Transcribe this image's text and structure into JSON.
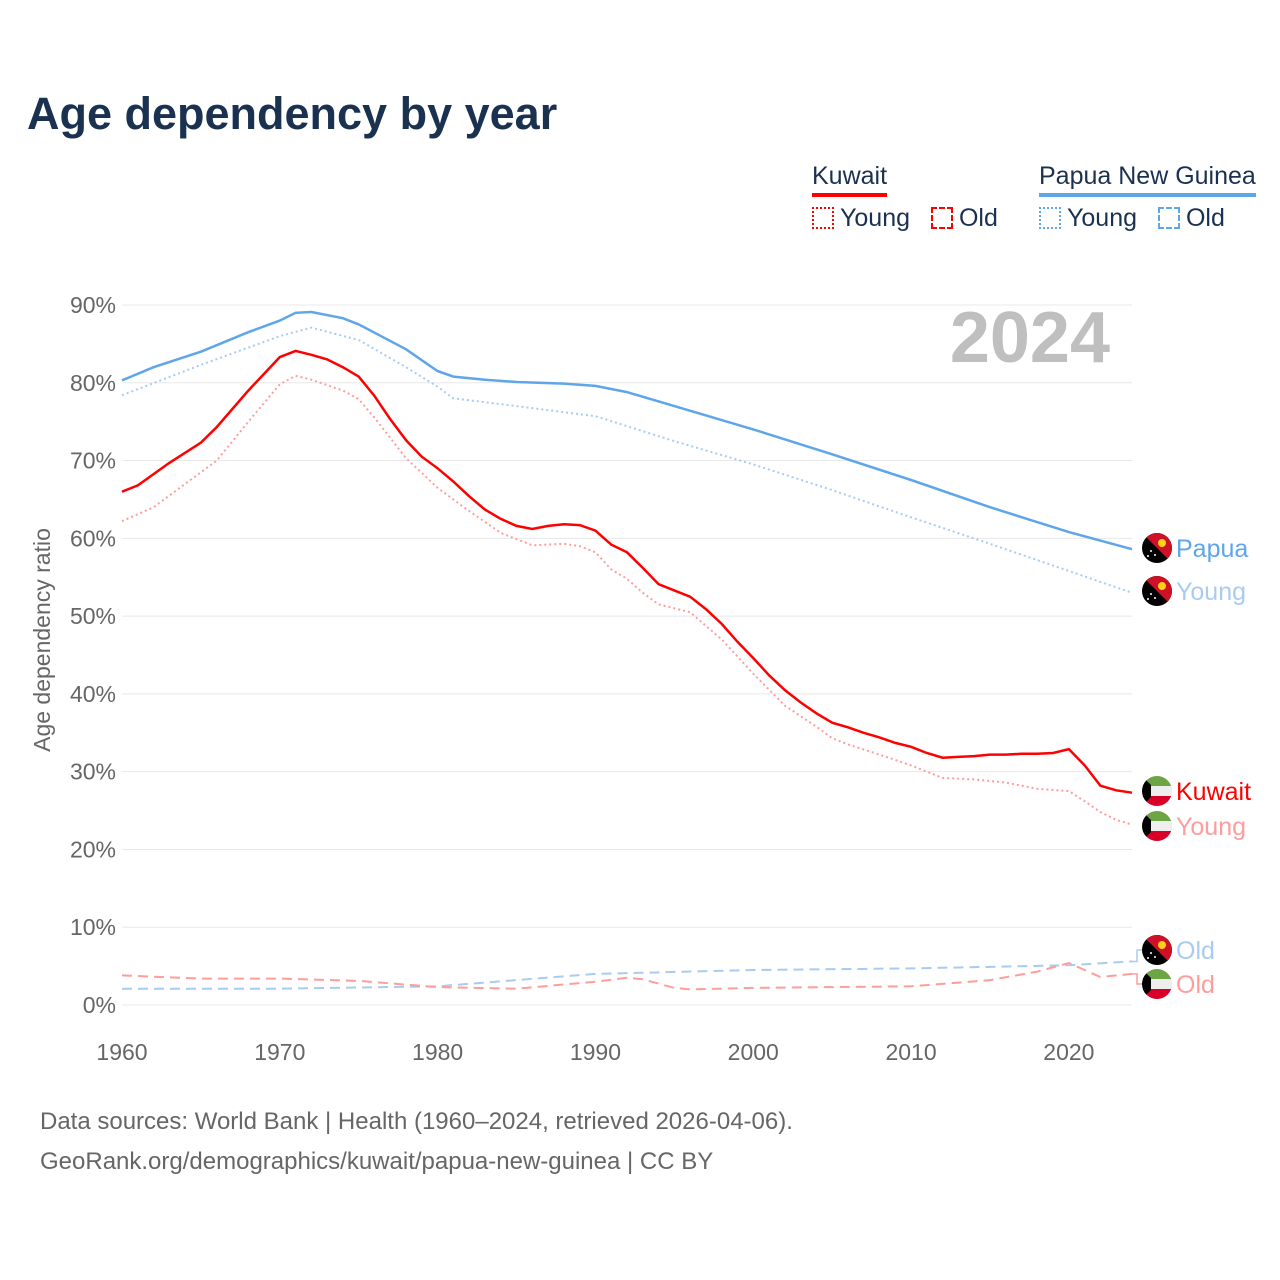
{
  "colors": {
    "kuwait": "#ff0000",
    "kuwait_light": "#ff9c9c",
    "png": "#5fa5ea",
    "png_light": "#a8cbf2",
    "title": "#1b3150"
  },
  "legend": {
    "kuwait": {
      "name": "Kuwait",
      "young": "Young",
      "old": "Old"
    },
    "png": {
      "name": "Papua New Guinea",
      "young": "Young",
      "old": "Old"
    }
  },
  "sources": {
    "line1": "Data sources: World Bank | Health (1960–2024, retrieved 2026-04-06).",
    "line2": "GeoRank.org/demographics/kuwait/papua-new-guinea | CC BY"
  },
  "chart_data": {
    "type": "line",
    "title": "Age dependency by year",
    "year_label": "2024",
    "xlabel": "",
    "ylabel": "Age dependency ratio",
    "xlim": [
      1960,
      2024
    ],
    "ylim": [
      0,
      90
    ],
    "xticks": [
      "1960",
      "1970",
      "1980",
      "1990",
      "2000",
      "2010",
      "2020"
    ],
    "yticks": [
      "0%",
      "10%",
      "20%",
      "30%",
      "40%",
      "50%",
      "60%",
      "70%",
      "80%",
      "90%"
    ],
    "grid": true,
    "series": [
      {
        "name": "Papua New Guinea",
        "end_label": "Papua",
        "kind": "total",
        "color": "#5fa5ea",
        "style": "solid",
        "points": [
          [
            1960,
            80.3
          ],
          [
            1962,
            82
          ],
          [
            1965,
            84
          ],
          [
            1968,
            86.5
          ],
          [
            1970,
            88
          ],
          [
            1971,
            89
          ],
          [
            1972,
            89.1
          ],
          [
            1974,
            88.3
          ],
          [
            1975,
            87.5
          ],
          [
            1978,
            84.3
          ],
          [
            1980,
            81.5
          ],
          [
            1981,
            80.8
          ],
          [
            1983,
            80.4
          ],
          [
            1985,
            80.1
          ],
          [
            1988,
            79.9
          ],
          [
            1990,
            79.6
          ],
          [
            1992,
            78.8
          ],
          [
            1995,
            77
          ],
          [
            2000,
            74
          ],
          [
            2005,
            70.8
          ],
          [
            2010,
            67.5
          ],
          [
            2015,
            64
          ],
          [
            2020,
            60.8
          ],
          [
            2024,
            58.6
          ]
        ]
      },
      {
        "name": "Papua New Guinea Young",
        "end_label": "Young",
        "kind": "young",
        "color": "#a8cbf2",
        "style": "dotted",
        "points": [
          [
            1960,
            78.4
          ],
          [
            1965,
            82.3
          ],
          [
            1970,
            86
          ],
          [
            1972,
            87.1
          ],
          [
            1975,
            85.5
          ],
          [
            1978,
            82
          ],
          [
            1980,
            79.5
          ],
          [
            1981,
            78
          ],
          [
            1985,
            77
          ],
          [
            1990,
            75.7
          ],
          [
            1995,
            72.5
          ],
          [
            2000,
            69.5
          ],
          [
            2005,
            66.2
          ],
          [
            2010,
            62.7
          ],
          [
            2015,
            59.3
          ],
          [
            2020,
            55.8
          ],
          [
            2024,
            53
          ]
        ]
      },
      {
        "name": "Kuwait",
        "end_label": "Kuwait",
        "kind": "total",
        "color": "#ff0000",
        "style": "solid",
        "points": [
          [
            1960,
            66
          ],
          [
            1961,
            66.8
          ],
          [
            1963,
            69.7
          ],
          [
            1965,
            72.3
          ],
          [
            1966,
            74.3
          ],
          [
            1968,
            79
          ],
          [
            1970,
            83.3
          ],
          [
            1971,
            84.1
          ],
          [
            1972,
            83.6
          ],
          [
            1973,
            83
          ],
          [
            1974,
            82
          ],
          [
            1975,
            80.8
          ],
          [
            1976,
            78.3
          ],
          [
            1977,
            75.3
          ],
          [
            1978,
            72.6
          ],
          [
            1979,
            70.5
          ],
          [
            1980,
            69
          ],
          [
            1981,
            67.3
          ],
          [
            1982,
            65.4
          ],
          [
            1983,
            63.7
          ],
          [
            1984,
            62.5
          ],
          [
            1985,
            61.6
          ],
          [
            1986,
            61.2
          ],
          [
            1987,
            61.6
          ],
          [
            1988,
            61.8
          ],
          [
            1989,
            61.7
          ],
          [
            1990,
            61
          ],
          [
            1991,
            59.2
          ],
          [
            1992,
            58.2
          ],
          [
            1993,
            56.2
          ],
          [
            1994,
            54.1
          ],
          [
            1995,
            53.3
          ],
          [
            1996,
            52.5
          ],
          [
            1997,
            50.9
          ],
          [
            1998,
            49
          ],
          [
            1999,
            46.7
          ],
          [
            2000,
            44.6
          ],
          [
            2001,
            42.4
          ],
          [
            2002,
            40.5
          ],
          [
            2003,
            38.9
          ],
          [
            2004,
            37.5
          ],
          [
            2005,
            36.3
          ],
          [
            2006,
            35.7
          ],
          [
            2007,
            35
          ],
          [
            2008,
            34.4
          ],
          [
            2009,
            33.7
          ],
          [
            2010,
            33.2
          ],
          [
            2011,
            32.4
          ],
          [
            2012,
            31.8
          ],
          [
            2013,
            31.9
          ],
          [
            2014,
            32
          ],
          [
            2015,
            32.2
          ],
          [
            2016,
            32.2
          ],
          [
            2017,
            32.3
          ],
          [
            2018,
            32.3
          ],
          [
            2019,
            32.4
          ],
          [
            2020,
            32.9
          ],
          [
            2021,
            30.8
          ],
          [
            2022,
            28.2
          ],
          [
            2023,
            27.6
          ],
          [
            2024,
            27.3
          ]
        ]
      },
      {
        "name": "Kuwait Young",
        "end_label": "Young",
        "kind": "young",
        "color": "#ff9c9c",
        "style": "dotted",
        "points": [
          [
            1960,
            62.2
          ],
          [
            1962,
            64
          ],
          [
            1964,
            67
          ],
          [
            1966,
            70
          ],
          [
            1968,
            75
          ],
          [
            1970,
            79.8
          ],
          [
            1971,
            80.9
          ],
          [
            1972,
            80.4
          ],
          [
            1974,
            79
          ],
          [
            1975,
            77.9
          ],
          [
            1976,
            75.5
          ],
          [
            1978,
            70.3
          ],
          [
            1980,
            66.5
          ],
          [
            1982,
            63.5
          ],
          [
            1984,
            60.7
          ],
          [
            1986,
            59.1
          ],
          [
            1988,
            59.3
          ],
          [
            1989,
            59
          ],
          [
            1990,
            58.2
          ],
          [
            1991,
            56
          ],
          [
            1992,
            54.8
          ],
          [
            1993,
            53
          ],
          [
            1994,
            51.5
          ],
          [
            1996,
            50.5
          ],
          [
            1998,
            47
          ],
          [
            2000,
            42.6
          ],
          [
            2002,
            38.5
          ],
          [
            2004,
            35.8
          ],
          [
            2005,
            34.3
          ],
          [
            2006,
            33.5
          ],
          [
            2008,
            32.2
          ],
          [
            2010,
            30.8
          ],
          [
            2012,
            29.2
          ],
          [
            2014,
            29
          ],
          [
            2016,
            28.6
          ],
          [
            2018,
            27.8
          ],
          [
            2020,
            27.5
          ],
          [
            2021,
            26.2
          ],
          [
            2022,
            24.8
          ],
          [
            2023,
            23.8
          ],
          [
            2024,
            23.2
          ]
        ]
      },
      {
        "name": "Papua New Guinea Old",
        "end_label": "Old",
        "kind": "old",
        "color": "#a8cbf2",
        "style": "dashed",
        "points": [
          [
            1960,
            2.1
          ],
          [
            1970,
            2.1
          ],
          [
            1980,
            2.4
          ],
          [
            1990,
            4
          ],
          [
            2000,
            4.5
          ],
          [
            2010,
            4.7
          ],
          [
            2020,
            5.1
          ],
          [
            2024,
            5.6
          ]
        ]
      },
      {
        "name": "Kuwait Old",
        "end_label": "Old",
        "kind": "old",
        "color": "#ff9c9c",
        "style": "dashed",
        "points": [
          [
            1960,
            3.8
          ],
          [
            1965,
            3.4
          ],
          [
            1970,
            3.4
          ],
          [
            1975,
            3.1
          ],
          [
            1980,
            2.3
          ],
          [
            1985,
            2.1
          ],
          [
            1990,
            3
          ],
          [
            1992,
            3.5
          ],
          [
            1993,
            3.3
          ],
          [
            1995,
            2.2
          ],
          [
            1996,
            2
          ],
          [
            2000,
            2.2
          ],
          [
            2005,
            2.3
          ],
          [
            2010,
            2.4
          ],
          [
            2015,
            3.2
          ],
          [
            2018,
            4.3
          ],
          [
            2020,
            5.4
          ],
          [
            2022,
            3.6
          ],
          [
            2024,
            4
          ]
        ]
      }
    ]
  }
}
